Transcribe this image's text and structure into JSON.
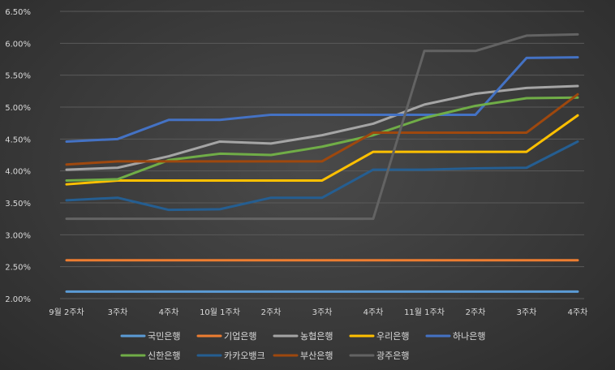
{
  "chart_data": {
    "type": "line",
    "title": "",
    "xlabel": "",
    "ylabel": "",
    "categories": [
      "9월 2주차",
      "3주차",
      "4주차",
      "10월 1주차",
      "2주차",
      "3주차",
      "4주차",
      "11월 1주차",
      "2주차",
      "3주차",
      "4주차"
    ],
    "ylim": [
      2.0,
      6.5
    ],
    "yticks": [
      "2.00%",
      "2.50%",
      "3.00%",
      "3.50%",
      "4.00%",
      "4.50%",
      "5.00%",
      "5.50%",
      "6.00%",
      "6.50%"
    ],
    "ytick_values": [
      2.0,
      2.5,
      3.0,
      3.5,
      4.0,
      4.5,
      5.0,
      5.5,
      6.0,
      6.5
    ],
    "grid": true,
    "legend_position": "bottom",
    "series": [
      {
        "name": "국민은행",
        "color": "#5b9bd5",
        "values": [
          2.11,
          2.11,
          2.11,
          2.11,
          2.11,
          2.11,
          2.11,
          2.11,
          2.11,
          2.11,
          2.11
        ]
      },
      {
        "name": "기업은행",
        "color": "#ed7d31",
        "values": [
          2.6,
          2.6,
          2.6,
          2.6,
          2.6,
          2.6,
          2.6,
          2.6,
          2.6,
          2.6,
          2.6
        ]
      },
      {
        "name": "농협은행",
        "color": "#a5a5a5",
        "values": [
          4.02,
          4.05,
          4.23,
          4.46,
          4.43,
          4.56,
          4.74,
          5.04,
          5.21,
          5.3,
          5.33
        ]
      },
      {
        "name": "우리은행",
        "color": "#ffc000",
        "values": [
          3.79,
          3.85,
          3.85,
          3.85,
          3.85,
          3.85,
          4.3,
          4.3,
          4.3,
          4.3,
          4.87
        ]
      },
      {
        "name": "하나은행",
        "color": "#4472c4",
        "values": [
          4.46,
          4.5,
          4.8,
          4.8,
          4.88,
          4.88,
          4.88,
          4.88,
          4.88,
          5.77,
          5.78
        ]
      },
      {
        "name": "신한은행",
        "color": "#70ad47",
        "values": [
          3.85,
          3.87,
          4.17,
          4.27,
          4.25,
          4.38,
          4.56,
          4.83,
          5.02,
          5.14,
          5.15
        ]
      },
      {
        "name": "카카오뱅크",
        "color": "#255e91",
        "values": [
          3.54,
          3.58,
          3.39,
          3.4,
          3.58,
          3.58,
          4.02,
          4.02,
          4.04,
          4.05,
          4.46
        ]
      },
      {
        "name": "부산은행",
        "color": "#9e480e",
        "values": [
          4.1,
          4.15,
          4.15,
          4.15,
          4.15,
          4.15,
          4.6,
          4.6,
          4.6,
          4.6,
          5.2
        ]
      },
      {
        "name": "광주은행",
        "color": "#636363",
        "values": [
          3.25,
          3.25,
          3.25,
          3.25,
          3.25,
          3.25,
          3.25,
          5.88,
          5.88,
          6.12,
          6.14
        ]
      }
    ]
  }
}
